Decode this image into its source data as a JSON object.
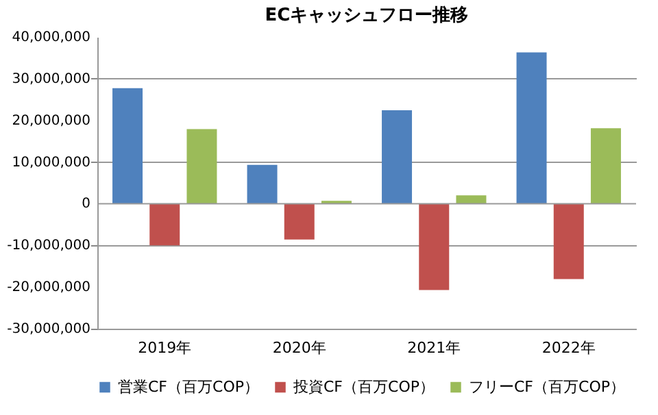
{
  "chart_data": {
    "type": "bar",
    "title": "ECキャッシュフロー推移",
    "categories": [
      "2019年",
      "2020年",
      "2021年",
      "2022年"
    ],
    "series": [
      {
        "name": "営業CF（百万COP）",
        "color": "#4f81bd",
        "values": [
          27700000,
          9300000,
          22400000,
          36300000
        ]
      },
      {
        "name": "投資CF（百万COP）",
        "color": "#c0504d",
        "values": [
          -10000000,
          -8600000,
          -20700000,
          -18100000
        ]
      },
      {
        "name": "フリーCF（百万COP）",
        "color": "#9bbb59",
        "values": [
          17900000,
          700000,
          2000000,
          18100000
        ]
      }
    ],
    "ylim": [
      -30000000,
      40000000
    ],
    "yticks": [
      {
        "value": -30000000,
        "label": "-30,000,000"
      },
      {
        "value": -20000000,
        "label": "-20,000,000"
      },
      {
        "value": -10000000,
        "label": "-10,000,000"
      },
      0,
      {
        "value": 10000000,
        "label": "10,000,000"
      },
      {
        "value": 20000000,
        "label": "20,000,000"
      },
      {
        "value": 30000000,
        "label": "30,000,000"
      },
      {
        "value": 40000000,
        "label": "40,000,000"
      }
    ],
    "grid": "y",
    "legend": "bottom"
  }
}
